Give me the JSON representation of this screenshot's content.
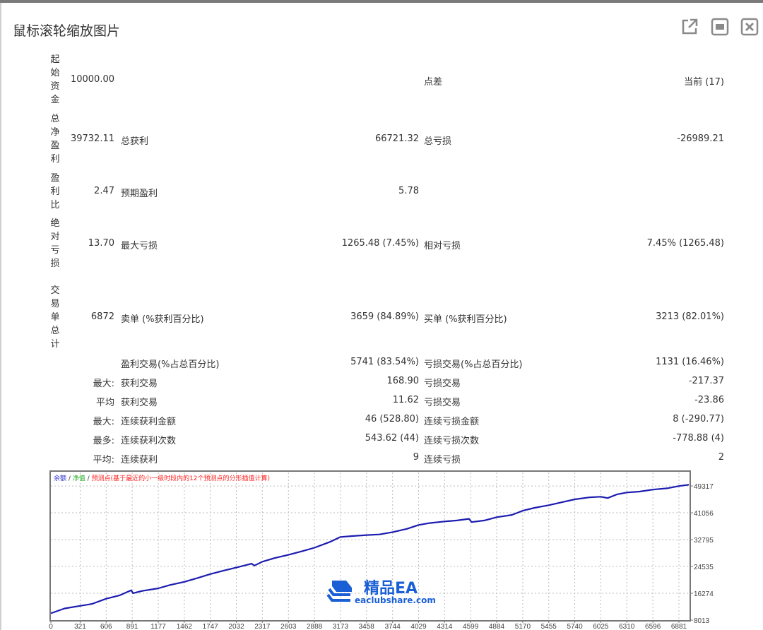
{
  "window": {
    "title": "鼠标滚轮缩放图片",
    "buttons": [
      {
        "icon": "open-external-icon"
      },
      {
        "icon": "fit-screen-icon"
      },
      {
        "icon": "close-icon"
      }
    ]
  },
  "report": {
    "big_rows": [
      {
        "label": "起始资金",
        "value1": "10000.00",
        "label2": "",
        "value2": "",
        "label3": "点差",
        "value3": "当前 (17)"
      },
      {
        "label": "总净盈利",
        "value1": "39732.11",
        "label2": "总获利",
        "value2": "66721.32",
        "label3": "总亏损",
        "value3": "-26989.21"
      },
      {
        "label": "盈利比",
        "value1": "2.47",
        "label2": "预期盈利",
        "value2": "5.78",
        "label3": "",
        "value3": ""
      },
      {
        "label": "绝对亏损",
        "value1": "13.70",
        "label2": "最大亏损",
        "value2": "1265.48 (7.45%)",
        "label3": "相对亏损",
        "value3": "7.45% (1265.48)"
      },
      {
        "label": "交易单总计",
        "value1": "6872",
        "label2": "卖单 (%获利百分比)",
        "value2": "3659 (84.89%)",
        "label3": "买单 (%获利百分比)",
        "value3": "3213 (82.01%)"
      }
    ],
    "small_rows": [
      {
        "prefix": "",
        "label2": "盈利交易(%占总百分比)",
        "value2": "5741 (83.54%)",
        "label3": "亏损交易(%占总百分比)",
        "value3": "1131 (16.46%)"
      },
      {
        "prefix": "最大:",
        "label2": "获利交易",
        "value2": "168.90",
        "label3": "亏损交易",
        "value3": "-217.37"
      },
      {
        "prefix": "平均",
        "label2": "获利交易",
        "value2": "11.62",
        "label3": "亏损交易",
        "value3": "-23.86"
      },
      {
        "prefix": "最大:",
        "label2": "连续获利金额",
        "value2": "46 (528.80)",
        "label3": "连续亏损金额",
        "value3": "8 (-290.77)"
      },
      {
        "prefix": "最多:",
        "label2": "连续获利次数",
        "value2": "543.62 (44)",
        "label3": "连续亏损次数",
        "value3": "-778.88 (4)"
      },
      {
        "prefix": "平均:",
        "label2": "连续获利",
        "value2": "9",
        "label3": "连续亏损",
        "value3": "2"
      }
    ]
  },
  "chart_data": {
    "type": "line",
    "legend": [
      {
        "text": "余额",
        "color": "#3333cc"
      },
      {
        "text": " / ",
        "color": "#333333"
      },
      {
        "text": "净值",
        "color": "#22aa22"
      },
      {
        "text": " / ",
        "color": "#333333"
      },
      {
        "text": "预测点(基于最近的小一级时段内的12个预测点的分形插值计算)",
        "color": "#ff2222"
      }
    ],
    "legend_placement": "top-left",
    "x_ticks": [
      0,
      321,
      606,
      891,
      1177,
      1462,
      1747,
      2032,
      2317,
      2603,
      2888,
      3173,
      3458,
      3744,
      4029,
      4314,
      4599,
      4884,
      5170,
      5455,
      5740,
      6025,
      6310,
      6596,
      6881
    ],
    "y_ticks": [
      8013,
      16274,
      24535,
      32795,
      41056,
      49317
    ],
    "xlim": [
      0,
      7005
    ],
    "ylim": [
      8013,
      53900
    ],
    "y_axis_side": "right",
    "grid": true,
    "series": [
      {
        "color": "#1c1cb0",
        "x": [
          0,
          150,
          321,
          450,
          606,
          750,
          880,
          900,
          1000,
          1177,
          1300,
          1462,
          1600,
          1747,
          1900,
          2032,
          2200,
          2230,
          2317,
          2450,
          2603,
          2750,
          2888,
          3050,
          3173,
          3300,
          3458,
          3600,
          3744,
          3900,
          4029,
          4150,
          4314,
          4450,
          4580,
          4610,
          4750,
          4884,
          5050,
          5170,
          5300,
          5455,
          5600,
          5740,
          5900,
          6025,
          6100,
          6200,
          6310,
          6450,
          6596,
          6750,
          6881,
          6990
        ],
        "y": [
          10100,
          11600,
          12400,
          13000,
          14600,
          15600,
          17200,
          16300,
          17000,
          17800,
          18800,
          19800,
          20900,
          22200,
          23300,
          24200,
          25400,
          24800,
          26000,
          27100,
          28100,
          29200,
          30300,
          32000,
          33600,
          33900,
          34200,
          34400,
          35100,
          36100,
          37300,
          37900,
          38400,
          38700,
          39200,
          38200,
          38700,
          39700,
          40400,
          41700,
          42600,
          43400,
          44300,
          45200,
          45800,
          46000,
          45600,
          46700,
          47300,
          47600,
          48200,
          48600,
          49300,
          49700
        ]
      }
    ]
  },
  "watermark": {
    "name": "精品EA",
    "url": "eaclubshare.com",
    "color": "#1a5fd6"
  }
}
